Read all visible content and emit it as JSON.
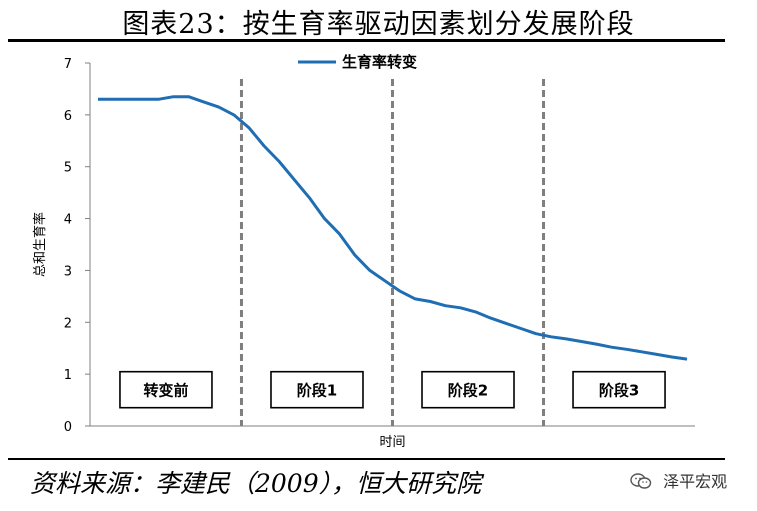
{
  "header": {
    "title": "图表23：按生育率驱动因素划分发展阶段"
  },
  "footer": {
    "source": "资料来源：李建民（2009），恒大研究院",
    "brand": "泽平宏观",
    "brand_icon": "wechat-icon"
  },
  "chart_data": {
    "type": "line",
    "title": "",
    "xlabel": "时间",
    "ylabel": "总和生育率",
    "ylim": [
      0,
      7
    ],
    "yticks": [
      "0",
      "1",
      "2",
      "3",
      "4",
      "5",
      "6",
      "7"
    ],
    "grid": false,
    "legend_position": "top-center",
    "series": [
      {
        "name": "生育率转变",
        "color": "#1f6db3",
        "x": [
          0,
          1,
          2,
          3,
          4,
          5,
          6,
          7,
          8,
          9,
          10,
          11,
          12,
          13,
          14,
          15,
          16,
          17,
          18,
          19,
          20,
          21,
          22,
          23,
          24,
          25,
          26,
          27,
          28,
          29,
          30,
          31,
          32,
          33,
          34,
          35,
          36,
          37,
          38,
          39
        ],
        "values": [
          6.3,
          6.3,
          6.3,
          6.3,
          6.3,
          6.35,
          6.35,
          6.25,
          6.15,
          6.0,
          5.75,
          5.4,
          5.1,
          4.75,
          4.4,
          4.0,
          3.7,
          3.3,
          3.0,
          2.8,
          2.6,
          2.45,
          2.4,
          2.32,
          2.28,
          2.2,
          2.08,
          1.98,
          1.88,
          1.78,
          1.72,
          1.68,
          1.63,
          1.58,
          1.52,
          1.48,
          1.43,
          1.38,
          1.33,
          1.29
        ]
      }
    ],
    "dividers_at_x": [
      9.5,
      19.5,
      29.5
    ],
    "stages": [
      {
        "label": "转变前",
        "x_center": 4.5
      },
      {
        "label": "阶段1",
        "x_center": 14.5
      },
      {
        "label": "阶段2",
        "x_center": 24.5
      },
      {
        "label": "阶段3",
        "x_center": 34.5
      }
    ],
    "stage_box_y": 0.7
  }
}
